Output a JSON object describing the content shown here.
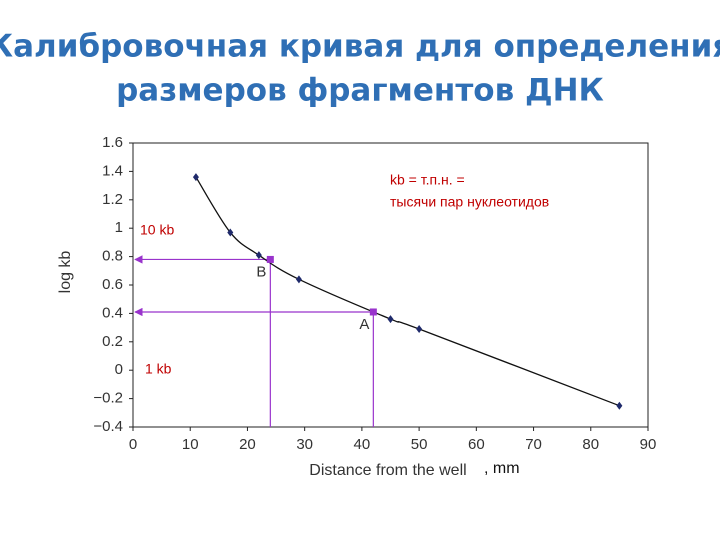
{
  "title": [
    "Калибровочная кривая для определения",
    "размеров фрагментов ДНК"
  ],
  "chart_data": {
    "type": "line",
    "x_label": "Distance from the well",
    "x_label_suffix": ", mm",
    "y_label": "log kb",
    "x": [
      11,
      17,
      22,
      29,
      45,
      50,
      85
    ],
    "series": [
      {
        "name": "log kb",
        "color": "#1f2a6b",
        "values": [
          1.36,
          0.97,
          0.81,
          0.64,
          0.36,
          0.29,
          -0.25
        ]
      }
    ],
    "markers": [
      {
        "label": "B",
        "x": 24,
        "y": 0.78,
        "color": "#9933cc"
      },
      {
        "label": "A",
        "x": 42,
        "y": 0.41,
        "color": "#9933cc"
      }
    ],
    "annotations": [
      "kb = т.п.н. =",
      "тысячи пар нуклеотидов",
      "10 kb",
      "1 kb"
    ],
    "xlim": [
      0,
      90
    ],
    "xticks": [
      0,
      10,
      20,
      30,
      40,
      50,
      60,
      70,
      80,
      90
    ],
    "ylim": [
      -0.4,
      1.6
    ],
    "yticks": [
      1.6,
      1.4,
      1.2,
      1,
      0.8,
      0.6,
      0.4,
      0.2,
      0,
      {
        "value": -0.2,
        "label": "−0.2"
      },
      {
        "value": -0.4,
        "label": "−0.4"
      }
    ],
    "grid": false
  }
}
